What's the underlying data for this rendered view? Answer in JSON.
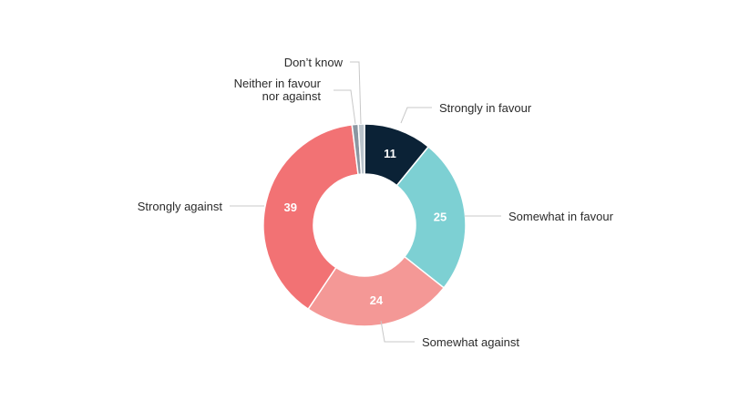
{
  "chart_data": {
    "type": "pie",
    "donut": true,
    "title": "",
    "categories": [
      "Strongly in favour",
      "Somewhat in favour",
      "Somewhat against",
      "Strongly against",
      "Neither in favour nor against",
      "Don’t know"
    ],
    "values": [
      11,
      25,
      24,
      39,
      1,
      1
    ],
    "value_labels": [
      "11",
      "25",
      "24",
      "39",
      "",
      ""
    ],
    "label_lines": [
      [
        "Strongly in favour"
      ],
      [
        "Somewhat in favour"
      ],
      [
        "Somewhat against"
      ],
      [
        "Strongly against"
      ],
      [
        "Neither in favour",
        "nor against"
      ],
      [
        "Don’t know"
      ]
    ],
    "colors": [
      "#0b2236",
      "#7dd0d3",
      "#f49896",
      "#f27274",
      "#8b96a1",
      "#b9c3cb"
    ],
    "legend": "none"
  }
}
